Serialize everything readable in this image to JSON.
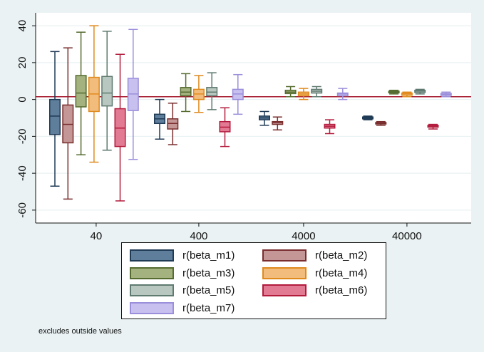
{
  "chart_data": {
    "type": "box",
    "categories": [
      "40",
      "400",
      "4000",
      "40000"
    ],
    "yticks": [
      40,
      20,
      0,
      -20,
      -40,
      -60
    ],
    "ylim": [
      -67,
      47
    ],
    "grid": true,
    "reference_line": 1.5,
    "legend_position": "bottom",
    "series": [
      {
        "name": "r(beta_m1)",
        "color": "#5e7e9c",
        "stroke": "#1f3a55",
        "boxes": [
          {
            "min": -47,
            "q1": -19,
            "median": -9,
            "q3": 0,
            "max": 26
          },
          {
            "min": -21.5,
            "q1": -13,
            "median": -10.5,
            "q3": -8,
            "max": 0
          },
          {
            "min": -14,
            "q1": -11,
            "median": -10,
            "q3": -9,
            "max": -6.5
          },
          {
            "min": -11,
            "q1": -10.5,
            "median": -10,
            "q3": -9.5,
            "max": -9
          }
        ]
      },
      {
        "name": "r(beta_m2)",
        "color": "#c49696",
        "stroke": "#7a2e2e",
        "boxes": [
          {
            "min": -54,
            "q1": -23.5,
            "median": -13.5,
            "q3": -3,
            "max": 28
          },
          {
            "min": -24.5,
            "q1": -16,
            "median": -13,
            "q3": -10.5,
            "max": -2
          },
          {
            "min": -16.5,
            "q1": -13.5,
            "median": -12.5,
            "q3": -12,
            "max": -9.5
          },
          {
            "min": -14,
            "q1": -13.3,
            "median": -13,
            "q3": -12.5,
            "max": -12
          }
        ]
      },
      {
        "name": "r(beta_m3)",
        "color": "#a3b27f",
        "stroke": "#556b2f",
        "boxes": [
          {
            "min": -30,
            "q1": -4,
            "median": 3.5,
            "q3": 13,
            "max": 36.5
          },
          {
            "min": -6.5,
            "q1": 2,
            "median": 4,
            "q3": 6.5,
            "max": 14
          },
          {
            "min": 1.5,
            "q1": 3.2,
            "median": 4,
            "q3": 5,
            "max": 7
          },
          {
            "min": 3,
            "q1": 3.6,
            "median": 4,
            "q3": 4.5,
            "max": 5
          }
        ]
      },
      {
        "name": "r(beta_m4)",
        "color": "#f2bd7c",
        "stroke": "#e08a1e",
        "boxes": [
          {
            "min": -34,
            "q1": -6.5,
            "median": 3,
            "q3": 12,
            "max": 40
          },
          {
            "min": -7,
            "q1": 0,
            "median": 3,
            "q3": 5.5,
            "max": 13
          },
          {
            "min": 0,
            "q1": 2,
            "median": 3,
            "q3": 4,
            "max": 6
          },
          {
            "min": 1.5,
            "q1": 2.3,
            "median": 3,
            "q3": 3.5,
            "max": 4
          }
        ]
      },
      {
        "name": "r(beta_m5)",
        "color": "#b8c8c0",
        "stroke": "#5f7a70",
        "boxes": [
          {
            "min": -27.5,
            "q1": -3.5,
            "median": 3.5,
            "q3": 12.5,
            "max": 37
          },
          {
            "min": -5.5,
            "q1": 2,
            "median": 4,
            "q3": 6.5,
            "max": 14.5
          },
          {
            "min": 1.5,
            "q1": 3.5,
            "median": 4.5,
            "q3": 5.5,
            "max": 7
          },
          {
            "min": 3,
            "q1": 3.8,
            "median": 4.5,
            "q3": 5,
            "max": 5.5
          }
        ]
      },
      {
        "name": "r(beta_m6)",
        "color": "#e27a93",
        "stroke": "#b31b3c",
        "boxes": [
          {
            "min": -55,
            "q1": -25.5,
            "median": -15.5,
            "q3": -5,
            "max": 24.5
          },
          {
            "min": -25.5,
            "q1": -17.5,
            "median": -15,
            "q3": -12,
            "max": -4.5
          },
          {
            "min": -18.5,
            "q1": -15.5,
            "median": -14.5,
            "q3": -13.5,
            "max": -11
          },
          {
            "min": -16,
            "q1": -15,
            "median": -14.5,
            "q3": -14,
            "max": -13.5
          }
        ]
      },
      {
        "name": "r(beta_m7)",
        "color": "#c8c0ee",
        "stroke": "#9b8fdb",
        "boxes": [
          {
            "min": -32.5,
            "q1": -6,
            "median": 3,
            "q3": 11.5,
            "max": 38
          },
          {
            "min": -8,
            "q1": 0,
            "median": 3,
            "q3": 5.5,
            "max": 13.5
          },
          {
            "min": 0,
            "q1": 2,
            "median": 3,
            "q3": 3.5,
            "max": 6
          },
          {
            "min": 1.5,
            "q1": 2.2,
            "median": 2.8,
            "q3": 3.3,
            "max": 4
          }
        ]
      }
    ]
  },
  "note": "excludes outside values"
}
